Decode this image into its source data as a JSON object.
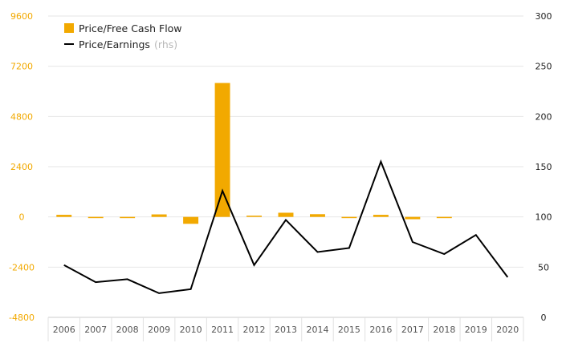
{
  "chart_data": {
    "type": "bar",
    "categories": [
      "2006",
      "2007",
      "2008",
      "2009",
      "2010",
      "2011",
      "2012",
      "2013",
      "2014",
      "2015",
      "2016",
      "2017",
      "2018",
      "2019",
      "2020"
    ],
    "series": [
      {
        "name": "Price/Free Cash Flow",
        "type": "bar",
        "axis": "left",
        "color": "#f2a900",
        "values": [
          100,
          -40,
          -30,
          120,
          -330,
          6400,
          60,
          200,
          130,
          -30,
          100,
          -110,
          -50,
          0,
          0
        ]
      },
      {
        "name": "Price/Earnings",
        "type": "line",
        "axis": "right",
        "color": "#000000",
        "values": [
          52,
          35,
          38,
          24,
          28,
          126,
          52,
          97,
          65,
          69,
          155,
          75,
          63,
          82,
          40
        ]
      }
    ],
    "legend_note": "(rhs)",
    "y_left": {
      "min": -4800,
      "max": 9600,
      "ticks": [
        "9600",
        "7200",
        "4800",
        "2400",
        "0",
        "-2400",
        "-4800"
      ],
      "tick_values": [
        9600,
        7200,
        4800,
        2400,
        0,
        -2400,
        -4800
      ]
    },
    "y_right": {
      "min": 0,
      "max": 300,
      "ticks": [
        "300",
        "250",
        "200",
        "150",
        "100",
        "50",
        "0"
      ],
      "tick_values": [
        300,
        250,
        200,
        150,
        100,
        50,
        0
      ]
    },
    "grid": true,
    "legend_position": "top-left"
  }
}
